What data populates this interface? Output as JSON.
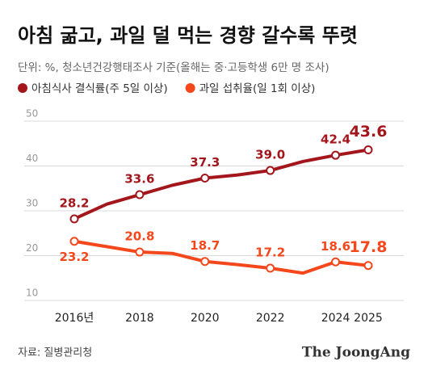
{
  "chart_data": {
    "type": "line",
    "title": "아침 굶고, 과일 덜 먹는 경향 갈수록 뚜렷",
    "subtitle": "단위: %, 청소년건강행태조사 기준(올해는 중·고등학생 6만 명 조사)",
    "source": "자료: 질병관리청",
    "brand": "The JoongAng",
    "categories": [
      "2016년",
      null,
      "2018",
      null,
      "2020",
      null,
      "2022",
      null,
      "2024",
      "2025"
    ],
    "series": [
      {
        "name": "아침식사 결식률(주 5일 이상)",
        "color": "#a3161c",
        "values": [
          28.2,
          31.5,
          33.6,
          35.7,
          37.3,
          38.0,
          39.0,
          41.0,
          42.4,
          43.6
        ],
        "value_labels": [
          "28.2",
          null,
          "33.6",
          null,
          "37.3",
          null,
          "39.0",
          null,
          "42.4",
          "43.6"
        ]
      },
      {
        "name": "과일 섭취율(일 1회 이상)",
        "color": "#f4471c",
        "values": [
          23.2,
          22.0,
          20.8,
          20.5,
          18.7,
          18.0,
          17.2,
          16.1,
          18.6,
          17.8
        ],
        "value_labels": [
          "23.2",
          null,
          "20.8",
          null,
          "18.7",
          null,
          "17.2",
          null,
          "18.6",
          "17.8"
        ]
      }
    ],
    "ylim": [
      10,
      50
    ],
    "yticks": [
      10,
      20,
      30,
      40,
      50
    ],
    "grid": true
  }
}
